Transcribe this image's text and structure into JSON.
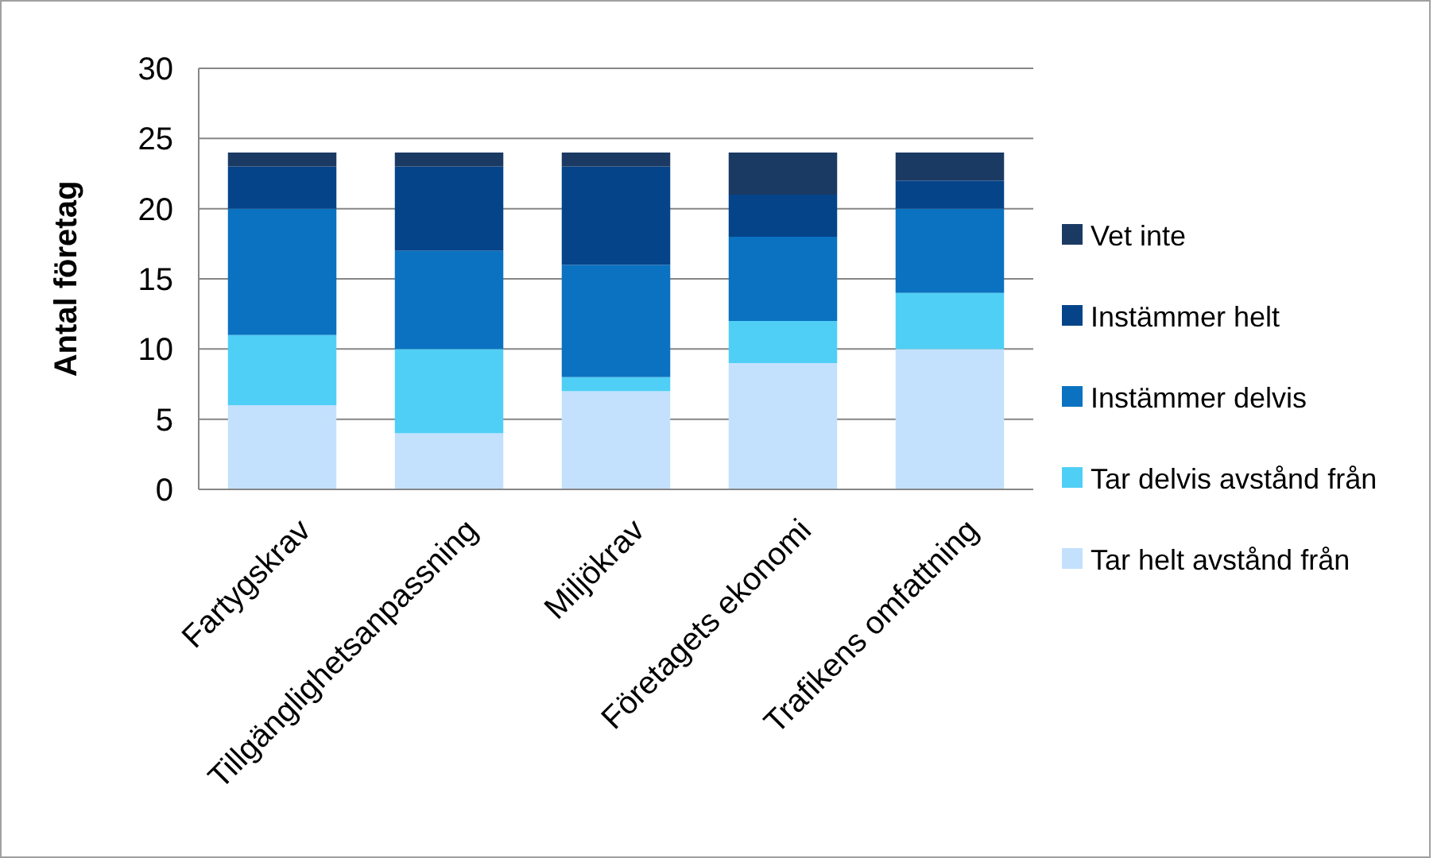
{
  "chart_data": {
    "type": "bar",
    "stacked": true,
    "ylabel": "Antal företag",
    "categories": [
      "Fartygskrav",
      "Tillgänglighetsanpassning",
      "Miljökrav",
      "Företagets ekonomi",
      "Trafikens omfattning"
    ],
    "series": [
      {
        "name": "Tar helt avstånd från",
        "color": "#c3e1fd",
        "values": [
          6,
          4,
          7,
          9,
          10
        ]
      },
      {
        "name": "Tar delvis avstånd från",
        "color": "#4fcff6",
        "values": [
          5,
          6,
          1,
          3,
          4
        ]
      },
      {
        "name": "Instämmer delvis",
        "color": "#0a72c0",
        "values": [
          9,
          7,
          8,
          6,
          6
        ]
      },
      {
        "name": "Instämmer helt",
        "color": "#054489",
        "values": [
          3,
          6,
          7,
          3,
          2
        ]
      },
      {
        "name": "Vet inte",
        "color": "#1b3a63",
        "values": [
          1,
          1,
          1,
          3,
          2
        ]
      }
    ],
    "ylim": [
      0,
      30
    ],
    "yticks": [
      0,
      5,
      10,
      15,
      20,
      25,
      30
    ],
    "grid": "y",
    "legend": "right"
  }
}
